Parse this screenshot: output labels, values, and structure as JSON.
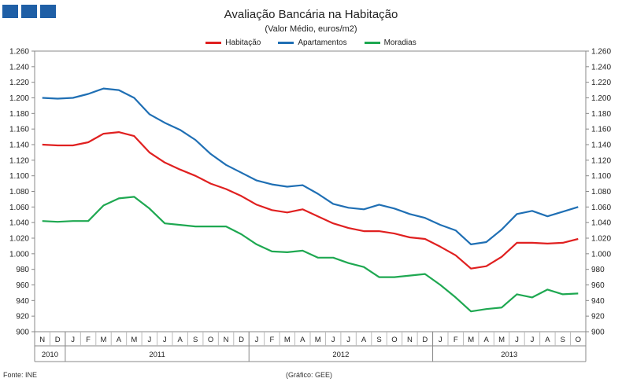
{
  "header": {
    "logo_color": "#1f5fa6",
    "title": "Avaliação Bancária na Habitação",
    "subtitle": "(Valor Médio, euros/m2)"
  },
  "footer": {
    "source": "Fonte: INE",
    "credit": "(Gráfico: GEE)"
  },
  "chart_data": {
    "type": "line",
    "title": "Avaliação Bancária na Habitação",
    "subtitle": "(Valor Médio, euros/m2)",
    "xlabel": "",
    "ylabel": "",
    "ylim": [
      900,
      1260
    ],
    "ytick_step": 20,
    "yticks": [
      "900",
      "920",
      "940",
      "960",
      "980",
      "1.000",
      "1.020",
      "1.040",
      "1.060",
      "1.080",
      "1.100",
      "1.120",
      "1.140",
      "1.160",
      "1.180",
      "1.200",
      "1.220",
      "1.240",
      "1.260"
    ],
    "legend_position": "top-center",
    "categories": [
      "N",
      "D",
      "J",
      "F",
      "M",
      "A",
      "M",
      "J",
      "J",
      "A",
      "S",
      "O",
      "N",
      "D",
      "J",
      "F",
      "M",
      "A",
      "M",
      "J",
      "J",
      "A",
      "S",
      "O",
      "N",
      "D",
      "J",
      "F",
      "M",
      "A",
      "M",
      "J",
      "J",
      "A",
      "S",
      "O"
    ],
    "years": [
      {
        "label": "2010",
        "start": 0,
        "end": 1
      },
      {
        "label": "2011",
        "start": 2,
        "end": 13
      },
      {
        "label": "2012",
        "start": 14,
        "end": 25
      },
      {
        "label": "2013",
        "start": 26,
        "end": 35
      }
    ],
    "series": [
      {
        "name": "Habitação",
        "color": "#e02020",
        "values": [
          1140,
          1139,
          1139,
          1143,
          1154,
          1156,
          1151,
          1130,
          1117,
          1108,
          1100,
          1090,
          1083,
          1074,
          1063,
          1056,
          1053,
          1057,
          1048,
          1039,
          1033,
          1029,
          1029,
          1026,
          1021,
          1019,
          1009,
          998,
          981,
          984,
          996,
          1014,
          1014,
          1013,
          1014,
          1019
        ]
      },
      {
        "name": "Apartamentos",
        "color": "#1f6fb4",
        "values": [
          1200,
          1199,
          1200,
          1205,
          1212,
          1210,
          1200,
          1179,
          1168,
          1159,
          1146,
          1128,
          1114,
          1104,
          1094,
          1089,
          1086,
          1088,
          1077,
          1064,
          1059,
          1057,
          1063,
          1058,
          1051,
          1046,
          1037,
          1030,
          1012,
          1015,
          1031,
          1051,
          1055,
          1048,
          1054,
          1060
        ]
      },
      {
        "name": "Moradias",
        "color": "#1ea851",
        "values": [
          1042,
          1041,
          1042,
          1042,
          1062,
          1071,
          1073,
          1058,
          1039,
          1037,
          1035,
          1035,
          1035,
          1025,
          1012,
          1003,
          1002,
          1004,
          995,
          995,
          988,
          983,
          970,
          970,
          972,
          974,
          960,
          944,
          926,
          929,
          931,
          948,
          944,
          954,
          948,
          949
        ]
      }
    ]
  }
}
